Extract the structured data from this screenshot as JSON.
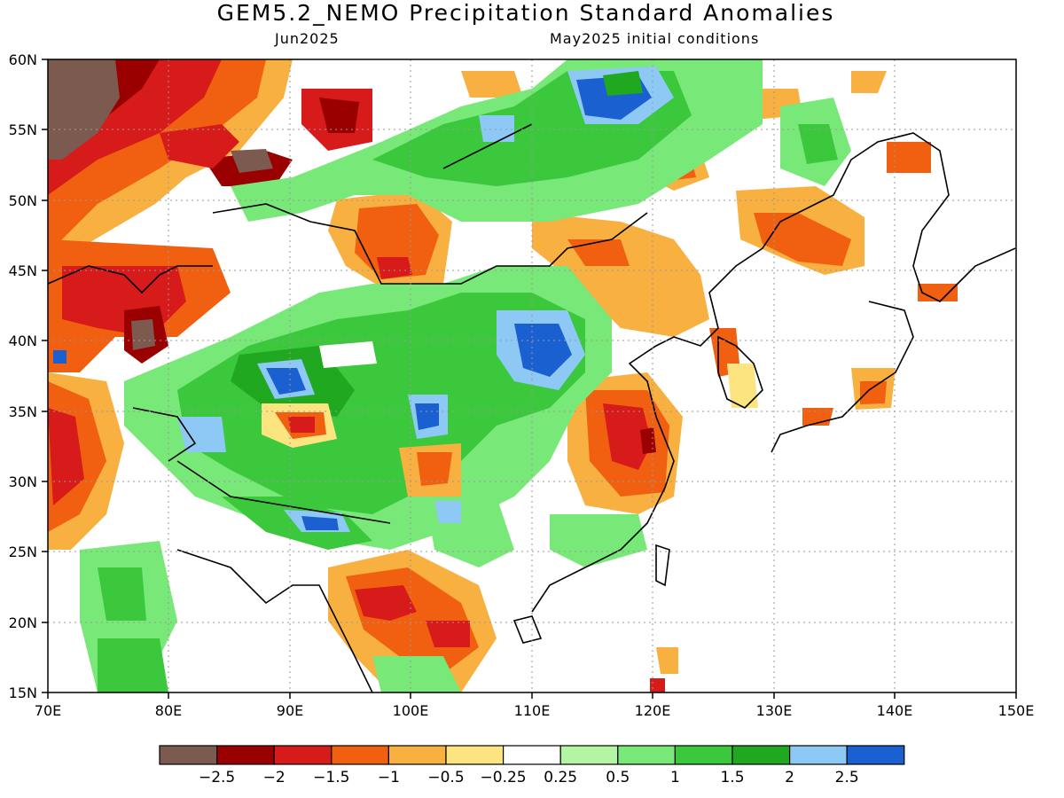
{
  "header": {
    "title": "GEM5.2_NEMO Precipitation Standard Anomalies",
    "valid": "Jun2025",
    "init": "May2025 initial conditions"
  },
  "axes": {
    "lon_ticks": [
      "70E",
      "80E",
      "90E",
      "100E",
      "110E",
      "120E",
      "130E",
      "140E",
      "150E"
    ],
    "lat_ticks": [
      "60N",
      "55N",
      "50N",
      "45N",
      "40N",
      "35N",
      "30N",
      "25N",
      "20N",
      "15N"
    ]
  },
  "colorbar": {
    "colors": [
      "#7d5a4f",
      "#9a0000",
      "#d71a1a",
      "#f06010",
      "#f8b040",
      "#fce580",
      "#ffffff",
      "#b4f5a4",
      "#78e878",
      "#3cc83c",
      "#20a820",
      "#8ec8f4",
      "#1a60d0"
    ],
    "labels": [
      "−2.5",
      "−2",
      "−1.5",
      "−1",
      "−0.5",
      "−0.25",
      "0.25",
      "0.5",
      "1",
      "1.5",
      "2",
      "2.5"
    ]
  }
}
